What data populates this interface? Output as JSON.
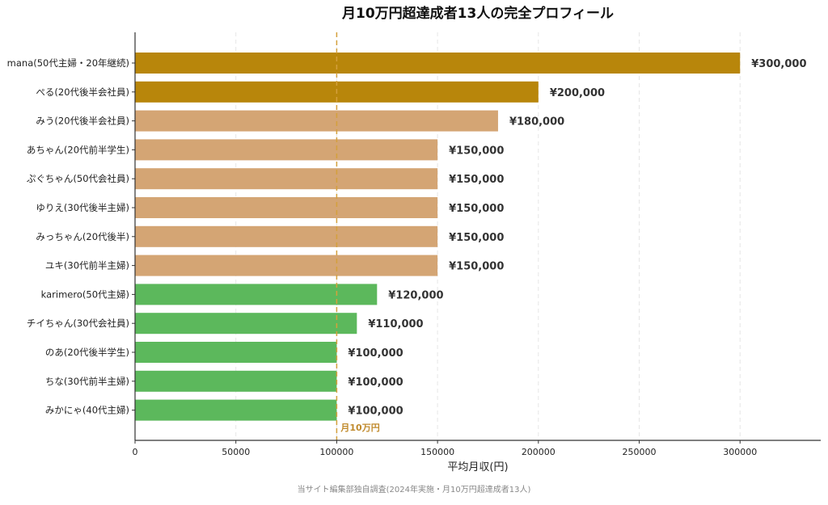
{
  "chart_data": {
    "type": "bar",
    "orientation": "horizontal",
    "title": "月10万円超達成者13人の完全プロフィール",
    "xlabel": "平均月収(円)",
    "ylabel": "",
    "xlim": [
      0,
      340000
    ],
    "x_ticks": [
      0,
      50000,
      100000,
      150000,
      200000,
      250000,
      300000
    ],
    "x_tick_labels": [
      "0",
      "50000",
      "100000",
      "150000",
      "200000",
      "250000",
      "300000"
    ],
    "grid": "vertical dashed",
    "categories": [
      "mana(50代主婦・20年継続)",
      "ぺる(20代後半会社員)",
      "みう(20代後半会社員)",
      "あちゃん(20代前半学生)",
      "ぷぐちゃん(50代会社員)",
      "ゆりえ(30代後半主婦)",
      "みっちゃん(20代後半)",
      "ユキ(30代前半主婦)",
      "karimero(50代主婦)",
      "チイちゃん(30代会社員)",
      "のあ(20代後半学生)",
      "ちな(30代前半主婦)",
      "みかにゃ(40代主婦)"
    ],
    "values": [
      300000,
      200000,
      180000,
      150000,
      150000,
      150000,
      150000,
      150000,
      120000,
      110000,
      100000,
      100000,
      100000
    ],
    "value_labels": [
      "¥300,000",
      "¥200,000",
      "¥180,000",
      "¥150,000",
      "¥150,000",
      "¥150,000",
      "¥150,000",
      "¥150,000",
      "¥120,000",
      "¥110,000",
      "¥100,000",
      "¥100,000",
      "¥100,000"
    ],
    "bar_colors": [
      "#B8860B",
      "#B8860B",
      "#D4A574",
      "#D4A574",
      "#D4A574",
      "#D4A574",
      "#D4A574",
      "#D4A574",
      "#5CB85C",
      "#5CB85C",
      "#5CB85C",
      "#5CB85C",
      "#5CB85C"
    ],
    "reference_line": {
      "value": 100000,
      "label": "月10万円",
      "color": "#D4A03C"
    }
  },
  "footer": {
    "source": "当サイト編集部独自調査(2024年実施・月10万円超達成者13人)"
  }
}
